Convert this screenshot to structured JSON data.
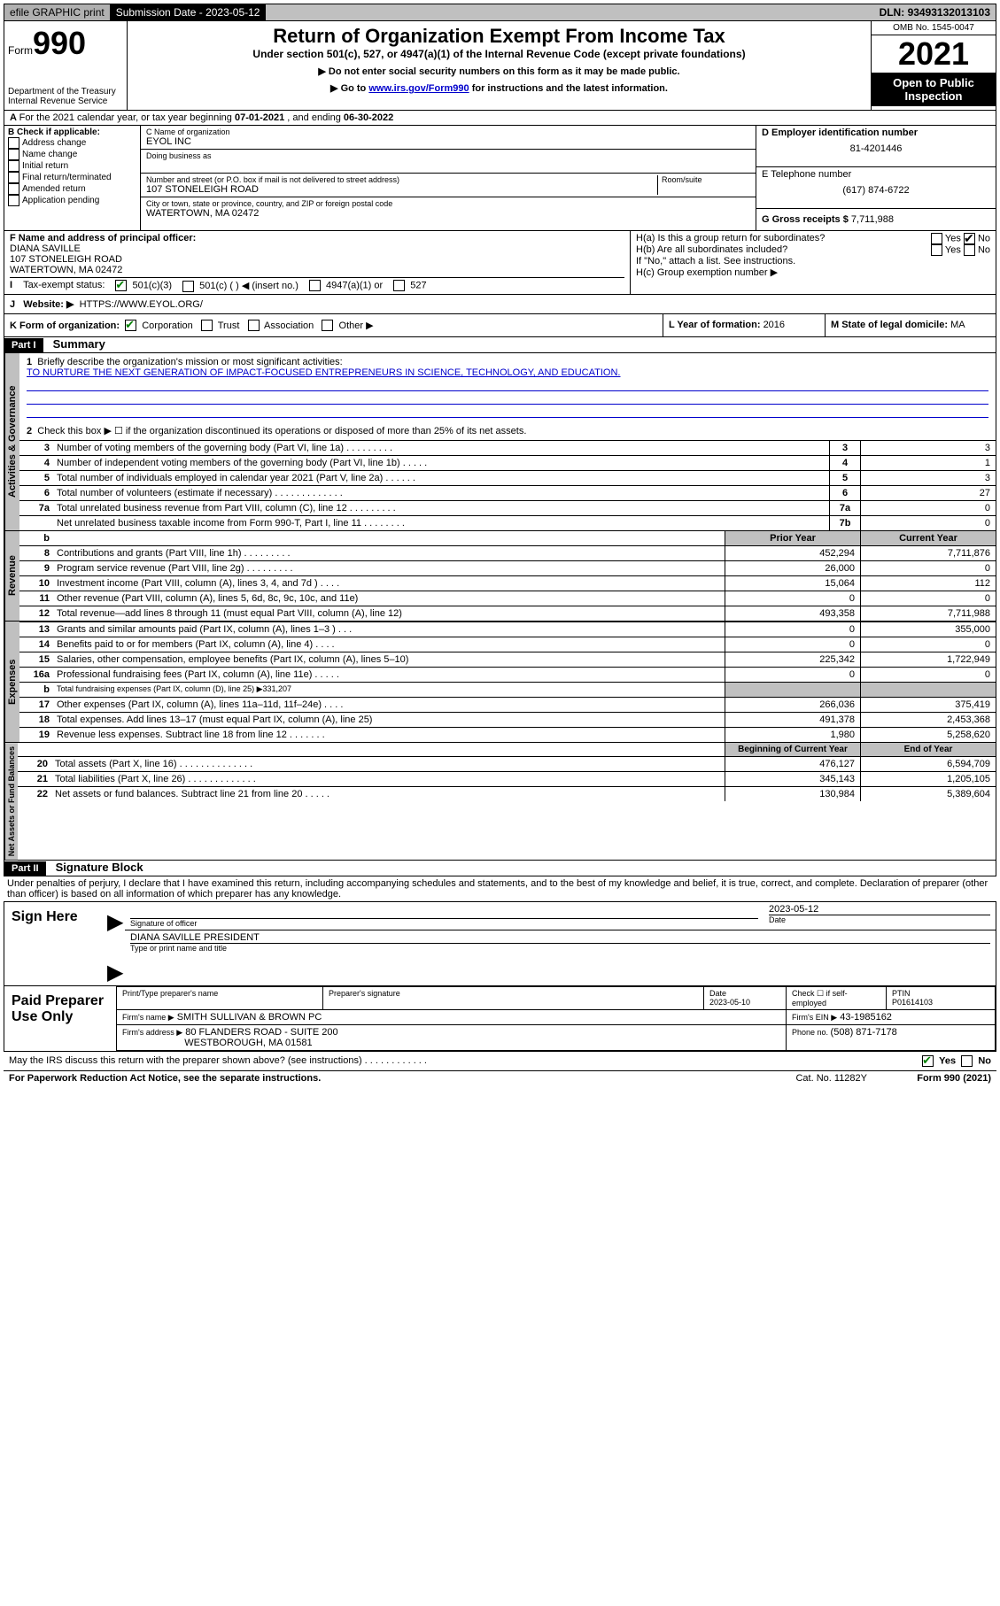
{
  "topbar": {
    "efile": "efile GRAPHIC print",
    "submission_label": "Submission Date - ",
    "submission_date": "2023-05-12",
    "dln_label": "DLN: ",
    "dln": "93493132013103"
  },
  "header": {
    "form_label": "Form",
    "form_number": "990",
    "dept": "Department of the Treasury",
    "irs": "Internal Revenue Service",
    "title": "Return of Organization Exempt From Income Tax",
    "subtitle": "Under section 501(c), 527, or 4947(a)(1) of the Internal Revenue Code (except private foundations)",
    "note1": "▶ Do not enter social security numbers on this form as it may be made public.",
    "note2_pre": "▶ Go to ",
    "note2_link": "www.irs.gov/Form990",
    "note2_post": " for instructions and the latest information.",
    "omb": "OMB No. 1545-0047",
    "year": "2021",
    "open": "Open to Public Inspection"
  },
  "period": {
    "text_a": "For the 2021 calendar year, or tax year beginning ",
    "begin": "07-01-2021",
    "text_b": " , and ending ",
    "end": "06-30-2022"
  },
  "box_b": {
    "label": "B Check if applicable:",
    "opts": [
      "Address change",
      "Name change",
      "Initial return",
      "Final return/terminated",
      "Amended return",
      "Application pending"
    ]
  },
  "box_c": {
    "name_label": "C Name of organization",
    "name": "EYOL INC",
    "dba_label": "Doing business as",
    "street_label": "Number and street (or P.O. box if mail is not delivered to street address)",
    "room_label": "Room/suite",
    "street": "107 STONELEIGH ROAD",
    "city_label": "City or town, state or province, country, and ZIP or foreign postal code",
    "city": "WATERTOWN, MA  02472"
  },
  "box_d": {
    "label": "D Employer identification number",
    "value": "81-4201446"
  },
  "box_e": {
    "label": "E Telephone number",
    "value": "(617) 874-6722"
  },
  "box_g": {
    "label": "G Gross receipts $ ",
    "value": "7,711,988"
  },
  "box_f": {
    "label": "F  Name and address of principal officer:",
    "name": "DIANA SAVILLE",
    "street": "107 STONELEIGH ROAD",
    "city": "WATERTOWN, MA  02472"
  },
  "box_h": {
    "ha": "H(a)  Is this a group return for subordinates?",
    "hb": "H(b)  Are all subordinates included?",
    "hb_note": "If \"No,\" attach a list. See instructions.",
    "hc": "H(c)  Group exemption number ▶",
    "yes": "Yes",
    "no": "No"
  },
  "row_i": {
    "label": "Tax-exempt status:",
    "o1": "501(c)(3)",
    "o2": "501(c) (  ) ◀ (insert no.)",
    "o3": "4947(a)(1) or",
    "o4": "527"
  },
  "row_j": {
    "label": "Website: ▶",
    "value": "HTTPS://WWW.EYOL.ORG/"
  },
  "row_k": {
    "label": "K Form of organization:",
    "o1": "Corporation",
    "o2": "Trust",
    "o3": "Association",
    "o4": "Other ▶"
  },
  "row_l": {
    "label": "L Year of formation: ",
    "value": "2016"
  },
  "row_m": {
    "label": "M State of legal domicile: ",
    "value": "MA"
  },
  "part1": {
    "label": "Part I",
    "title": "Summary"
  },
  "summary": {
    "q1": "Briefly describe the organization's mission or most significant activities:",
    "q1_ans": "TO NURTURE THE NEXT GENERATION OF IMPACT-FOCUSED ENTREPRENEURS IN SCIENCE, TECHNOLOGY, AND EDUCATION.",
    "q2": "Check this box ▶ ☐  if the organization discontinued its operations or disposed of more than 25% of its net assets.",
    "lines_gov": [
      {
        "n": "3",
        "t": "Number of voting members of the governing body (Part VI, line 1a)  .     .     .     .     .     .     .     .     .",
        "b": "3",
        "v": "3"
      },
      {
        "n": "4",
        "t": "Number of independent voting members of the governing body (Part VI, line 1b)  .     .     .     .     .",
        "b": "4",
        "v": "1"
      },
      {
        "n": "5",
        "t": "Total number of individuals employed in calendar year 2021 (Part V, line 2a)  .     .     .     .     .     .",
        "b": "5",
        "v": "3"
      },
      {
        "n": "6",
        "t": "Total number of volunteers (estimate if necessary)  .     .     .     .     .     .     .     .     .     .     .     .     .",
        "b": "6",
        "v": "27"
      },
      {
        "n": "7a",
        "t": "Total unrelated business revenue from Part VIII, column (C), line 12  .     .     .     .     .     .     .     .     .",
        "b": "7a",
        "v": "0"
      },
      {
        "n": "",
        "t": "Net unrelated business taxable income from Form 990-T, Part I, line 11  .     .     .     .     .     .     .     .",
        "b": "7b",
        "v": "0"
      }
    ],
    "hdr_prior": "Prior Year",
    "hdr_current": "Current Year",
    "lines_rev": [
      {
        "n": "8",
        "t": "Contributions and grants (Part VIII, line 1h)    .     .     .     .     .     .     .     .     .",
        "p": "452,294",
        "c": "7,711,876"
      },
      {
        "n": "9",
        "t": "Program service revenue (Part VIII, line 2g)    .     .     .     .     .     .     .     .     .",
        "p": "26,000",
        "c": "0"
      },
      {
        "n": "10",
        "t": "Investment income (Part VIII, column (A), lines 3, 4, and 7d )    .     .     .     .",
        "p": "15,064",
        "c": "112"
      },
      {
        "n": "11",
        "t": "Other revenue (Part VIII, column (A), lines 5, 6d, 8c, 9c, 10c, and 11e)",
        "p": "0",
        "c": "0"
      },
      {
        "n": "12",
        "t": "Total revenue—add lines 8 through 11 (must equal Part VIII, column (A), line 12)",
        "p": "493,358",
        "c": "7,711,988"
      }
    ],
    "lines_exp": [
      {
        "n": "13",
        "t": "Grants and similar amounts paid (Part IX, column (A), lines 1–3 )   .     .     .",
        "p": "0",
        "c": "355,000"
      },
      {
        "n": "14",
        "t": "Benefits paid to or for members (Part IX, column (A), line 4)   .     .     .     .",
        "p": "0",
        "c": "0"
      },
      {
        "n": "15",
        "t": "Salaries, other compensation, employee benefits (Part IX, column (A), lines 5–10)",
        "p": "225,342",
        "c": "1,722,949"
      },
      {
        "n": "16a",
        "t": "Professional fundraising fees (Part IX, column (A), line 11e)   .     .     .     .     .",
        "p": "0",
        "c": "0"
      },
      {
        "n": "b",
        "t": "Total fundraising expenses (Part IX, column (D), line 25) ▶331,207",
        "grey": true
      },
      {
        "n": "17",
        "t": "Other expenses (Part IX, column (A), lines 11a–11d, 11f–24e)   .     .     .     .",
        "p": "266,036",
        "c": "375,419"
      },
      {
        "n": "18",
        "t": "Total expenses. Add lines 13–17 (must equal Part IX, column (A), line 25)",
        "p": "491,378",
        "c": "2,453,368"
      },
      {
        "n": "19",
        "t": "Revenue less expenses. Subtract line 18 from line 12  .     .     .     .     .     .     .",
        "p": "1,980",
        "c": "5,258,620"
      }
    ],
    "hdr_begin": "Beginning of Current Year",
    "hdr_end": "End of Year",
    "lines_net": [
      {
        "n": "20",
        "t": "Total assets (Part X, line 16)  .     .     .     .     .     .     .     .     .     .     .     .     .     .",
        "p": "476,127",
        "c": "6,594,709"
      },
      {
        "n": "21",
        "t": "Total liabilities (Part X, line 26)  .     .     .     .     .     .     .     .     .     .     .     .     .",
        "p": "345,143",
        "c": "1,205,105"
      },
      {
        "n": "22",
        "t": "Net assets or fund balances. Subtract line 21 from line 20  .     .     .     .     .",
        "p": "130,984",
        "c": "5,389,604"
      }
    ],
    "vlabels": {
      "gov": "Activities & Governance",
      "rev": "Revenue",
      "exp": "Expenses",
      "net": "Net Assets or Fund Balances"
    }
  },
  "part2": {
    "label": "Part II",
    "title": "Signature Block",
    "declaration": "Under penalties of perjury, I declare that I have examined this return, including accompanying schedules and statements, and to the best of my knowledge and belief, it is true, correct, and complete. Declaration of preparer (other than officer) is based on all information of which preparer has any knowledge."
  },
  "sign": {
    "here": "Sign Here",
    "sig_label": "Signature of officer",
    "date": "2023-05-12",
    "date_label": "Date",
    "name": "DIANA SAVILLE  PRESIDENT",
    "name_label": "Type or print name and title"
  },
  "paid": {
    "label": "Paid Preparer Use Only",
    "h1": "Print/Type preparer's name",
    "h2": "Preparer's signature",
    "h3": "Date",
    "h4": "Check ☐ if self-employed",
    "h5": "PTIN",
    "date": "2023-05-10",
    "ptin": "P01614103",
    "firm_label": "Firm's name    ▶",
    "firm": "SMITH SULLIVAN & BROWN PC",
    "ein_label": "Firm's EIN ▶",
    "ein": "43-1985162",
    "addr_label": "Firm's address ▶",
    "addr1": "80 FLANDERS ROAD - SUITE 200",
    "addr2": "WESTBOROUGH, MA  01581",
    "phone_label": "Phone no. ",
    "phone": "(508) 871-7178"
  },
  "footer": {
    "discuss": "May the IRS discuss this return with the preparer shown above? (see instructions)   .     .     .     .     .     .     .     .     .     .     .     .",
    "yes": "Yes",
    "no": "No",
    "pra": "For Paperwork Reduction Act Notice, see the separate instructions.",
    "cat": "Cat. No. 11282Y",
    "form": "Form 990 (2021)"
  }
}
